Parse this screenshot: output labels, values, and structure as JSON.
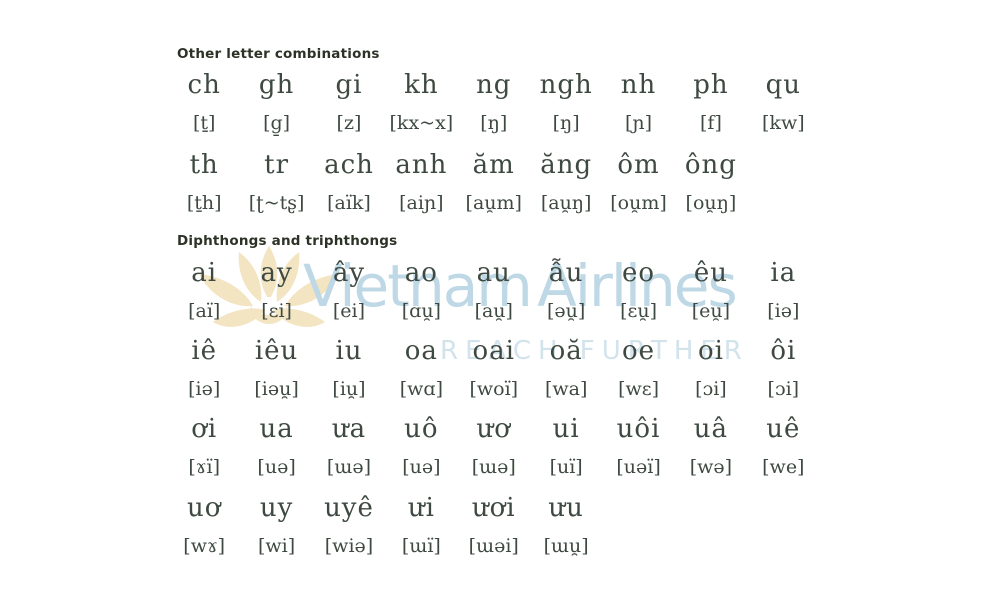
{
  "page": {
    "background": "#ffffff"
  },
  "colors": {
    "heading_text": "#2d3226",
    "letter_text": "#3e4a41",
    "watermark_brand_blue": "#bed8e6",
    "watermark_tagline_blue": "#d2e3ec",
    "lotus_cream": "#f3e4c2"
  },
  "watermark": {
    "brand": "Vietnam Airlines",
    "tagline": "REACH FURTHER",
    "lotus_icon": "lotus-flower"
  },
  "table": {
    "sections": [
      {
        "heading": "Other letter combinations",
        "rows": [
          {
            "letters": [
              "ch",
              "gh",
              "gi",
              "kh",
              "ng",
              "ngh",
              "nh",
              "ph",
              "qu"
            ],
            "ipa": [
              "[ṯ]",
              "[g̱]",
              "[z]",
              "[kx~x]",
              "[ŋ]",
              "[ŋ]",
              "[ɲ]",
              "[f]",
              "[kw]"
            ]
          },
          {
            "letters": [
              "th",
              "tr",
              "ach",
              "anh",
              "ăm",
              "ăng",
              "ôm",
              "ông"
            ],
            "ipa": [
              "[ṯh]",
              "[ʈ~tʂ]",
              "[aïk]",
              "[aiɲ]",
              "[au̯m]",
              "[au̯ŋ]",
              "[ou̯m]",
              "[ou̯ŋ]"
            ]
          }
        ]
      },
      {
        "heading": "Diphthongs and triphthongs",
        "rows": [
          {
            "letters": [
              "ai",
              "ay",
              "ây",
              "ao",
              "au",
              "ẫu",
              "eo",
              "êu",
              "ia"
            ],
            "ipa": [
              "[aï]",
              "[ɛi]",
              "[ei]",
              "[ɑu̯]",
              "[au̯]",
              "[əu̯]",
              "[ɛu̯]",
              "[eu̯]",
              "[iə]"
            ]
          },
          {
            "letters": [
              "iê",
              "iêu",
              "iu",
              "oa",
              "oai",
              "oă",
              "oe",
              "oi",
              "ôi"
            ],
            "ipa": [
              "[iə]",
              "[iəu̯]",
              "[iu̯]",
              "[wɑ]",
              "[woï]",
              "[wa]",
              "[wɛ]",
              "[ɔi]",
              "[ɔi]"
            ]
          },
          {
            "letters": [
              "ơi",
              "ua",
              "ưa",
              "uô",
              "ươ",
              "ui",
              "uôi",
              "uâ",
              "uê"
            ],
            "ipa": [
              "[ɤï]",
              "[uə]",
              "[ɯə]",
              "[uə]",
              "[ɯə]",
              "[uï]",
              "[uəï]",
              "[wə]",
              "[we]"
            ]
          },
          {
            "letters": [
              "uơ",
              "uy",
              "uyê",
              "ưi",
              "ươi",
              "ưu"
            ],
            "ipa": [
              "[wɤ]",
              "[wi]",
              "[wiə]",
              "[ɯï]",
              "[ɯəi]",
              "[ɯu̯]"
            ]
          }
        ]
      }
    ]
  }
}
